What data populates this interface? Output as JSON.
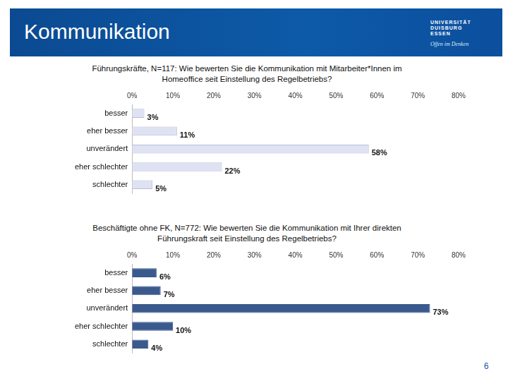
{
  "header": {
    "title": "Kommunikation",
    "logo": [
      "UNIVERSITÄT",
      "DUISBURG",
      "ESSEN"
    ],
    "motto": "Offen im Denken"
  },
  "page_number": "6",
  "chart_data": [
    {
      "type": "bar",
      "orientation": "horizontal",
      "title": [
        "Führungskräfte, N=117: Wie bewerten Sie die Kommunikation mit Mitarbeiter*Innen im",
        "Homeoffice seit Einstellung des Regelbetriebs?"
      ],
      "categories": [
        "besser",
        "eher besser",
        "unverändert",
        "eher schlechter",
        "schlechter"
      ],
      "values": [
        3,
        11,
        58,
        22,
        5
      ],
      "value_labels": [
        "3%",
        "11%",
        "58%",
        "22%",
        "5%"
      ],
      "color": "#dfe2f2",
      "xlim": [
        0,
        80
      ],
      "xticks": [
        {
          "value": 0,
          "label": "0%"
        },
        {
          "value": 10,
          "label": "10%"
        },
        {
          "value": 20,
          "label": "20%"
        },
        {
          "value": 30,
          "label": "30%"
        },
        {
          "value": 40,
          "label": "40%"
        },
        {
          "value": 50,
          "label": "50%"
        },
        {
          "value": 60,
          "label": "60%"
        },
        {
          "value": 70,
          "label": "70%"
        },
        {
          "value": 80,
          "label": "80%"
        }
      ],
      "grid": false,
      "data_labels": true
    },
    {
      "type": "bar",
      "orientation": "horizontal",
      "title": [
        "Beschäftigte ohne FK, N=772: Wie bewerten Sie die Kommunikation mit Ihrer direkten",
        "Führungskraft seit Einstellung des Regelbetriebs?"
      ],
      "categories": [
        "besser",
        "eher besser",
        "unverändert",
        "eher schlechter",
        "schlechter"
      ],
      "values": [
        6,
        7,
        73,
        10,
        4
      ],
      "value_labels": [
        "6%",
        "7%",
        "73%",
        "10%",
        "4%"
      ],
      "color": "#3a5a8e",
      "xlim": [
        0,
        80
      ],
      "xticks": [
        {
          "value": 0,
          "label": "0%"
        },
        {
          "value": 10,
          "label": "10%"
        },
        {
          "value": 20,
          "label": "20%"
        },
        {
          "value": 30,
          "label": "30%"
        },
        {
          "value": 40,
          "label": "40%"
        },
        {
          "value": 50,
          "label": "50%"
        },
        {
          "value": 60,
          "label": "60%"
        },
        {
          "value": 70,
          "label": "70%"
        },
        {
          "value": 80,
          "label": "80%"
        }
      ],
      "grid": false,
      "data_labels": true
    }
  ]
}
